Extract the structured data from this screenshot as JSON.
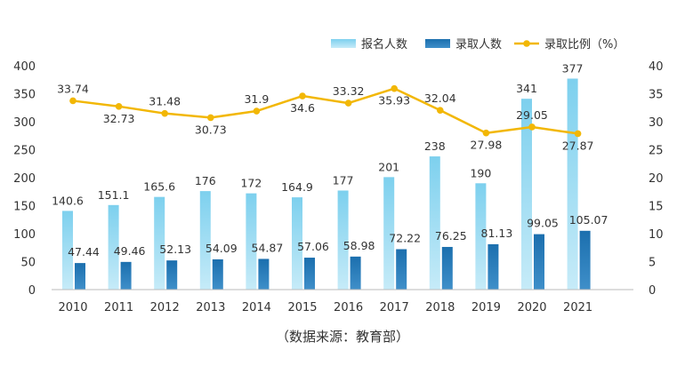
{
  "chart_data": {
    "type": "bar",
    "categories": [
      "2010",
      "2011",
      "2012",
      "2013",
      "2014",
      "2015",
      "2016",
      "2017",
      "2018",
      "2019",
      "2020",
      "2021"
    ],
    "series": [
      {
        "name": "报名人数",
        "type": "bar",
        "axis": "left",
        "values": [
          140.6,
          151.1,
          165.6,
          176,
          172,
          164.9,
          177,
          201,
          238,
          190,
          341,
          377
        ],
        "labels": [
          "140.6",
          "151.1",
          "165.6",
          "176",
          "172",
          "164.9",
          "177",
          "201",
          "238",
          "190",
          "341",
          "377"
        ],
        "color_top": "#7dd0ee",
        "color_bottom": "#c6ebf8"
      },
      {
        "name": "录取人数",
        "type": "bar",
        "axis": "left",
        "values": [
          47.44,
          49.46,
          52.13,
          54.09,
          54.87,
          57.06,
          58.98,
          72.22,
          76.25,
          81.13,
          99.05,
          105.07
        ],
        "labels": [
          "47.44",
          "49.46",
          "52.13",
          "54.09",
          "54.87",
          "57.06",
          "58.98",
          "72.22",
          "76.25",
          "81.13",
          "99.05",
          "105.07"
        ],
        "color_top": "#1b6fae",
        "color_bottom": "#3f8fc9"
      },
      {
        "name": "录取比例（%）",
        "type": "line",
        "axis": "right",
        "values": [
          33.74,
          32.73,
          31.48,
          30.73,
          31.9,
          34.6,
          33.32,
          35.93,
          32.04,
          27.98,
          29.05,
          27.87
        ],
        "labels": [
          "33.74",
          "32.73",
          "31.48",
          "30.73",
          "31.9",
          "34.6",
          "33.32",
          "35.93",
          "32.04",
          "27.98",
          "29.05",
          "27.87"
        ],
        "color": "#f2b705"
      }
    ],
    "ylim": [
      0,
      400
    ],
    "yticks": [
      "0",
      "50",
      "100",
      "150",
      "200",
      "250",
      "300",
      "350",
      "400"
    ],
    "y2lim": [
      0,
      40
    ],
    "y2ticks": [
      "0",
      "5",
      "10",
      "15",
      "20",
      "25",
      "30",
      "35",
      "40"
    ],
    "grid": false,
    "legend_position": "top-right"
  },
  "source_note": "（数据来源：教育部）"
}
